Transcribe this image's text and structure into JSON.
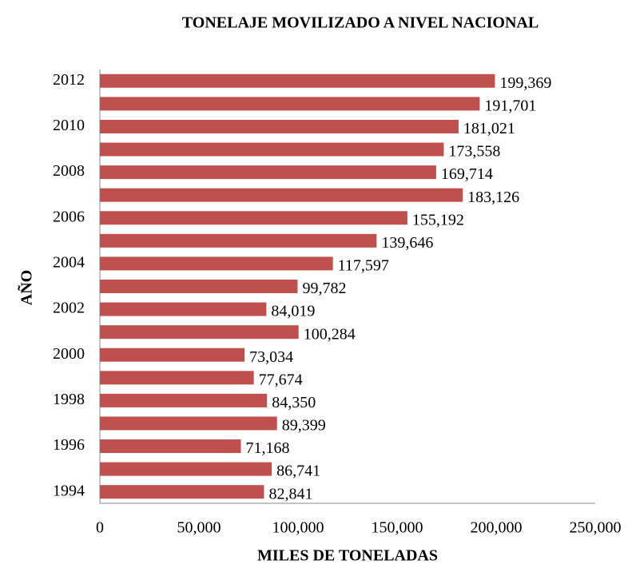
{
  "chart_data": {
    "type": "bar",
    "orientation": "horizontal",
    "title": "TONELAJE MOVILIZADO A NIVEL NACIONAL",
    "x_label": "MILES DE TONELADAS",
    "y_label": "AÑO",
    "categories": [
      "1994",
      null,
      "1996",
      null,
      "1998",
      null,
      "2000",
      null,
      "2002",
      null,
      "2004",
      null,
      "2006",
      null,
      "2008",
      null,
      "2010",
      null,
      "2012"
    ],
    "values": [
      82841,
      86741,
      71168,
      89399,
      84350,
      77674,
      73034,
      100284,
      84019,
      99782,
      117597,
      139646,
      155192,
      183126,
      169714,
      173558,
      181021,
      191701,
      199369
    ],
    "value_labels": [
      "82,841",
      "86,741",
      "71,168",
      "89,399",
      "84,350",
      "77,674",
      "73,034",
      "100,284",
      "84,019",
      "99,782",
      "117,597",
      "139,646",
      "155,192",
      "183,126",
      "169,714",
      "173,558",
      "181,021",
      "191,701",
      "199,369"
    ],
    "color": "#c0504d",
    "xlim": [
      0,
      250000
    ],
    "xticks": [
      0,
      {
        "value": 50000,
        "label": "50,000"
      },
      {
        "value": 100000,
        "label": "100,000"
      },
      {
        "value": 150000,
        "label": "150,000"
      },
      {
        "value": 200000,
        "label": "200,000"
      },
      {
        "value": 250000,
        "label": "250,000"
      }
    ],
    "grid": false
  }
}
